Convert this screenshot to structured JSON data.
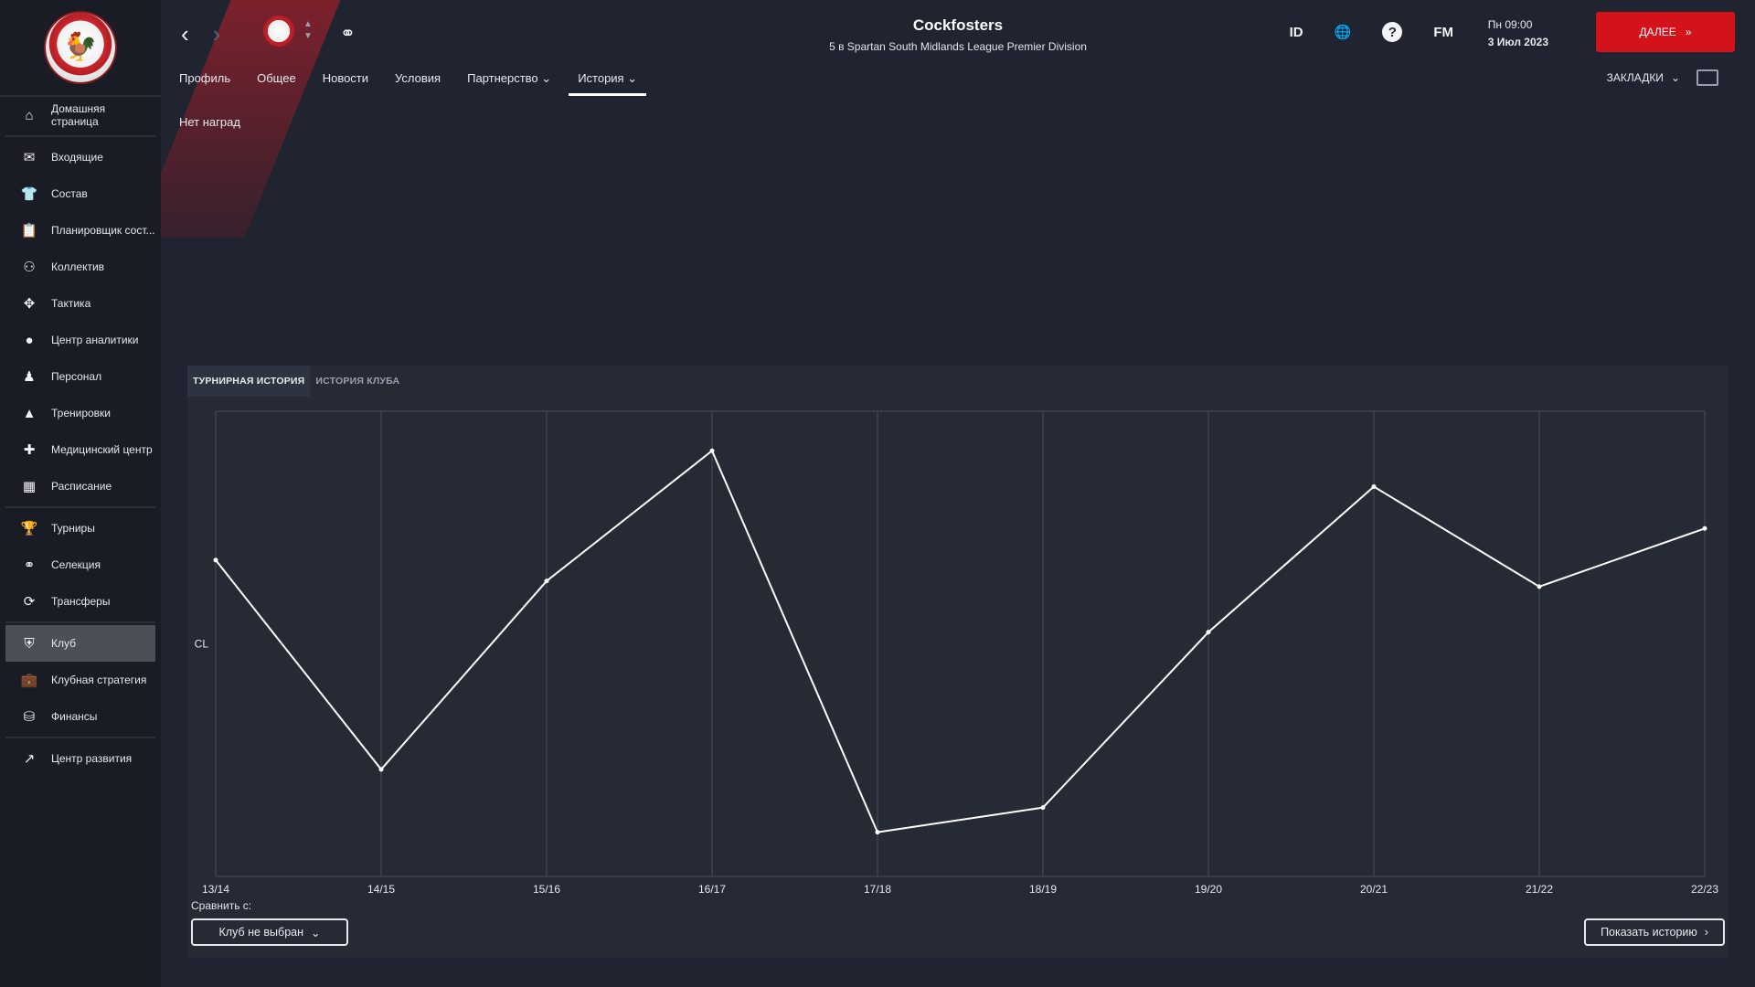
{
  "sidebar": {
    "items": [
      {
        "label": "Домашняя страница",
        "icon": "home-icon"
      },
      {
        "label": "Входящие",
        "icon": "mail-icon"
      },
      {
        "label": "Состав",
        "icon": "shirt-icon"
      },
      {
        "label": "Планировщик сост...",
        "icon": "clipboard-icon"
      },
      {
        "label": "Коллектив",
        "icon": "group-icon"
      },
      {
        "label": "Тактика",
        "icon": "tactics-icon"
      },
      {
        "label": "Центр аналитики",
        "icon": "analytics-icon"
      },
      {
        "label": "Персонал",
        "icon": "staff-icon"
      },
      {
        "label": "Тренировки",
        "icon": "cone-icon"
      },
      {
        "label": "Медицинский центр",
        "icon": "medical-icon"
      },
      {
        "label": "Расписание",
        "icon": "calendar-icon"
      },
      {
        "label": "Турниры",
        "icon": "trophy-icon"
      },
      {
        "label": "Селекция",
        "icon": "binoculars-icon"
      },
      {
        "label": "Трансферы",
        "icon": "transfer-icon"
      },
      {
        "label": "Клуб",
        "icon": "shield-icon"
      },
      {
        "label": "Клубная стратегия",
        "icon": "briefcase-icon"
      },
      {
        "label": "Финансы",
        "icon": "coins-icon"
      },
      {
        "label": "Центр развития",
        "icon": "growth-icon"
      }
    ]
  },
  "header": {
    "club_name": "Cockfosters",
    "subtitle": "5 в Spartan South Midlands League Premier Division",
    "id_label": "ID",
    "fm_label": "FM",
    "help_label": "?",
    "day_time": "Пн 09:00",
    "date": "3 Июл 2023",
    "next_label": "ДАЛЕЕ"
  },
  "tabs": [
    {
      "label": "Профиль"
    },
    {
      "label": "Общее"
    },
    {
      "label": "Новости"
    },
    {
      "label": "Условия"
    },
    {
      "label": "Партнерство"
    },
    {
      "label": "История"
    }
  ],
  "bookmarks_label": "ЗАКЛАДКИ",
  "no_awards": "Нет наград",
  "panel": {
    "tab_tournament": "ТУРНИРНАЯ ИСТОРИЯ",
    "tab_club": "ИСТОРИЯ КЛУБА",
    "compare_label": "Сравнить с:",
    "club_select": "Клуб не выбран",
    "show_history": "Показать историю"
  },
  "colors": {
    "accent": "#d4121b",
    "line": "#ffffff",
    "grid": "#4a4f5c"
  },
  "chart_data": {
    "type": "line",
    "categories": [
      "13/14",
      "14/15",
      "15/16",
      "16/17",
      "17/18",
      "18/19",
      "19/20",
      "20/21",
      "21/22",
      "22/23"
    ],
    "series": [
      {
        "values": [
          0.68,
          0.23,
          0.635,
          0.915,
          0.095,
          0.148,
          0.525,
          0.838,
          0.623,
          0.748
        ]
      }
    ],
    "y_tick_label": "CL",
    "y_tick_value": 0.5,
    "ylim": [
      0,
      1
    ],
    "grid": "vertical"
  }
}
